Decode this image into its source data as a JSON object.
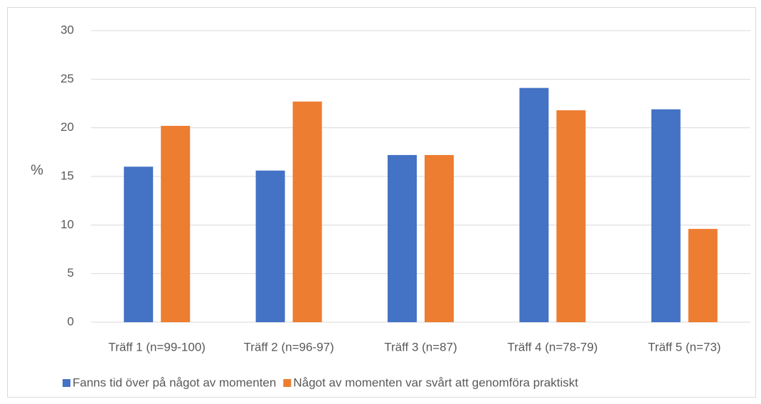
{
  "chart_data": {
    "type": "bar",
    "y_label": "%",
    "categories": [
      "Träff 1 (n=99-100)",
      "Träff 2 (n=96-97)",
      "Träff 3 (n=87)",
      "Träff 4 (n=78-79)",
      "Träff 5 (n=73)"
    ],
    "series": [
      {
        "name": "Fanns tid över på något av momenten",
        "color": "#4472c4",
        "values": [
          16.0,
          15.6,
          17.2,
          24.1,
          21.9
        ]
      },
      {
        "name": "Något av momenten var svårt att genomföra praktiskt",
        "color": "#ed7d31",
        "values": [
          20.2,
          22.7,
          17.2,
          21.8,
          9.6
        ]
      }
    ],
    "ylim": [
      0,
      30
    ],
    "yticks": [
      0,
      5,
      10,
      15,
      20,
      25,
      30
    ],
    "grid": true,
    "legend": "bottom"
  }
}
